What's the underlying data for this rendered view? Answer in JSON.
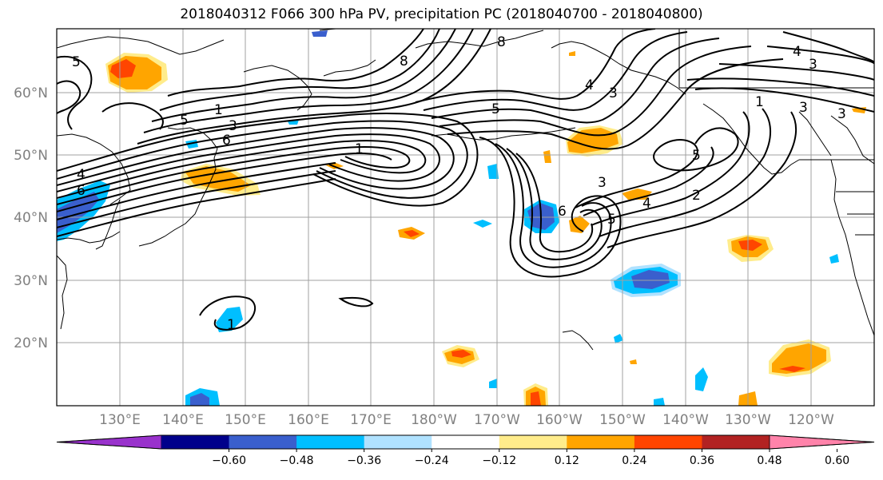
{
  "title": "2018040312 F066 300 hPa PV, precipitation PC (2018040700 - 2018040800)",
  "lat_labels": [
    "60°N",
    "50°N",
    "40°N",
    "30°N",
    "20°N"
  ],
  "lon_labels": [
    "130°E",
    "140°E",
    "150°E",
    "160°E",
    "170°E",
    "180°W",
    "170°W",
    "160°W",
    "150°W",
    "140°W",
    "130°W",
    "120°W"
  ],
  "colorbar": {
    "ticks": [
      "−0.60",
      "−0.48",
      "−0.36",
      "−0.24",
      "−0.12",
      "0.12",
      "0.24",
      "0.36",
      "0.48",
      "0.60"
    ],
    "colors": [
      "#9932cc",
      "#00008b",
      "#3a5fcd",
      "#00bfff",
      "#b0e2ff",
      "#ffffff",
      "#ffec8b",
      "#ffa500",
      "#ff4500",
      "#b22222",
      "#ff83aa"
    ]
  },
  "contour_labels": [
    "5",
    "8",
    "8",
    "4",
    "3",
    "1",
    "5",
    "3",
    "6",
    "1",
    "4",
    "6",
    "4",
    "5",
    "3",
    "6",
    "5",
    "3",
    "4",
    "2",
    "5",
    "1",
    "1",
    "3",
    "3"
  ]
}
